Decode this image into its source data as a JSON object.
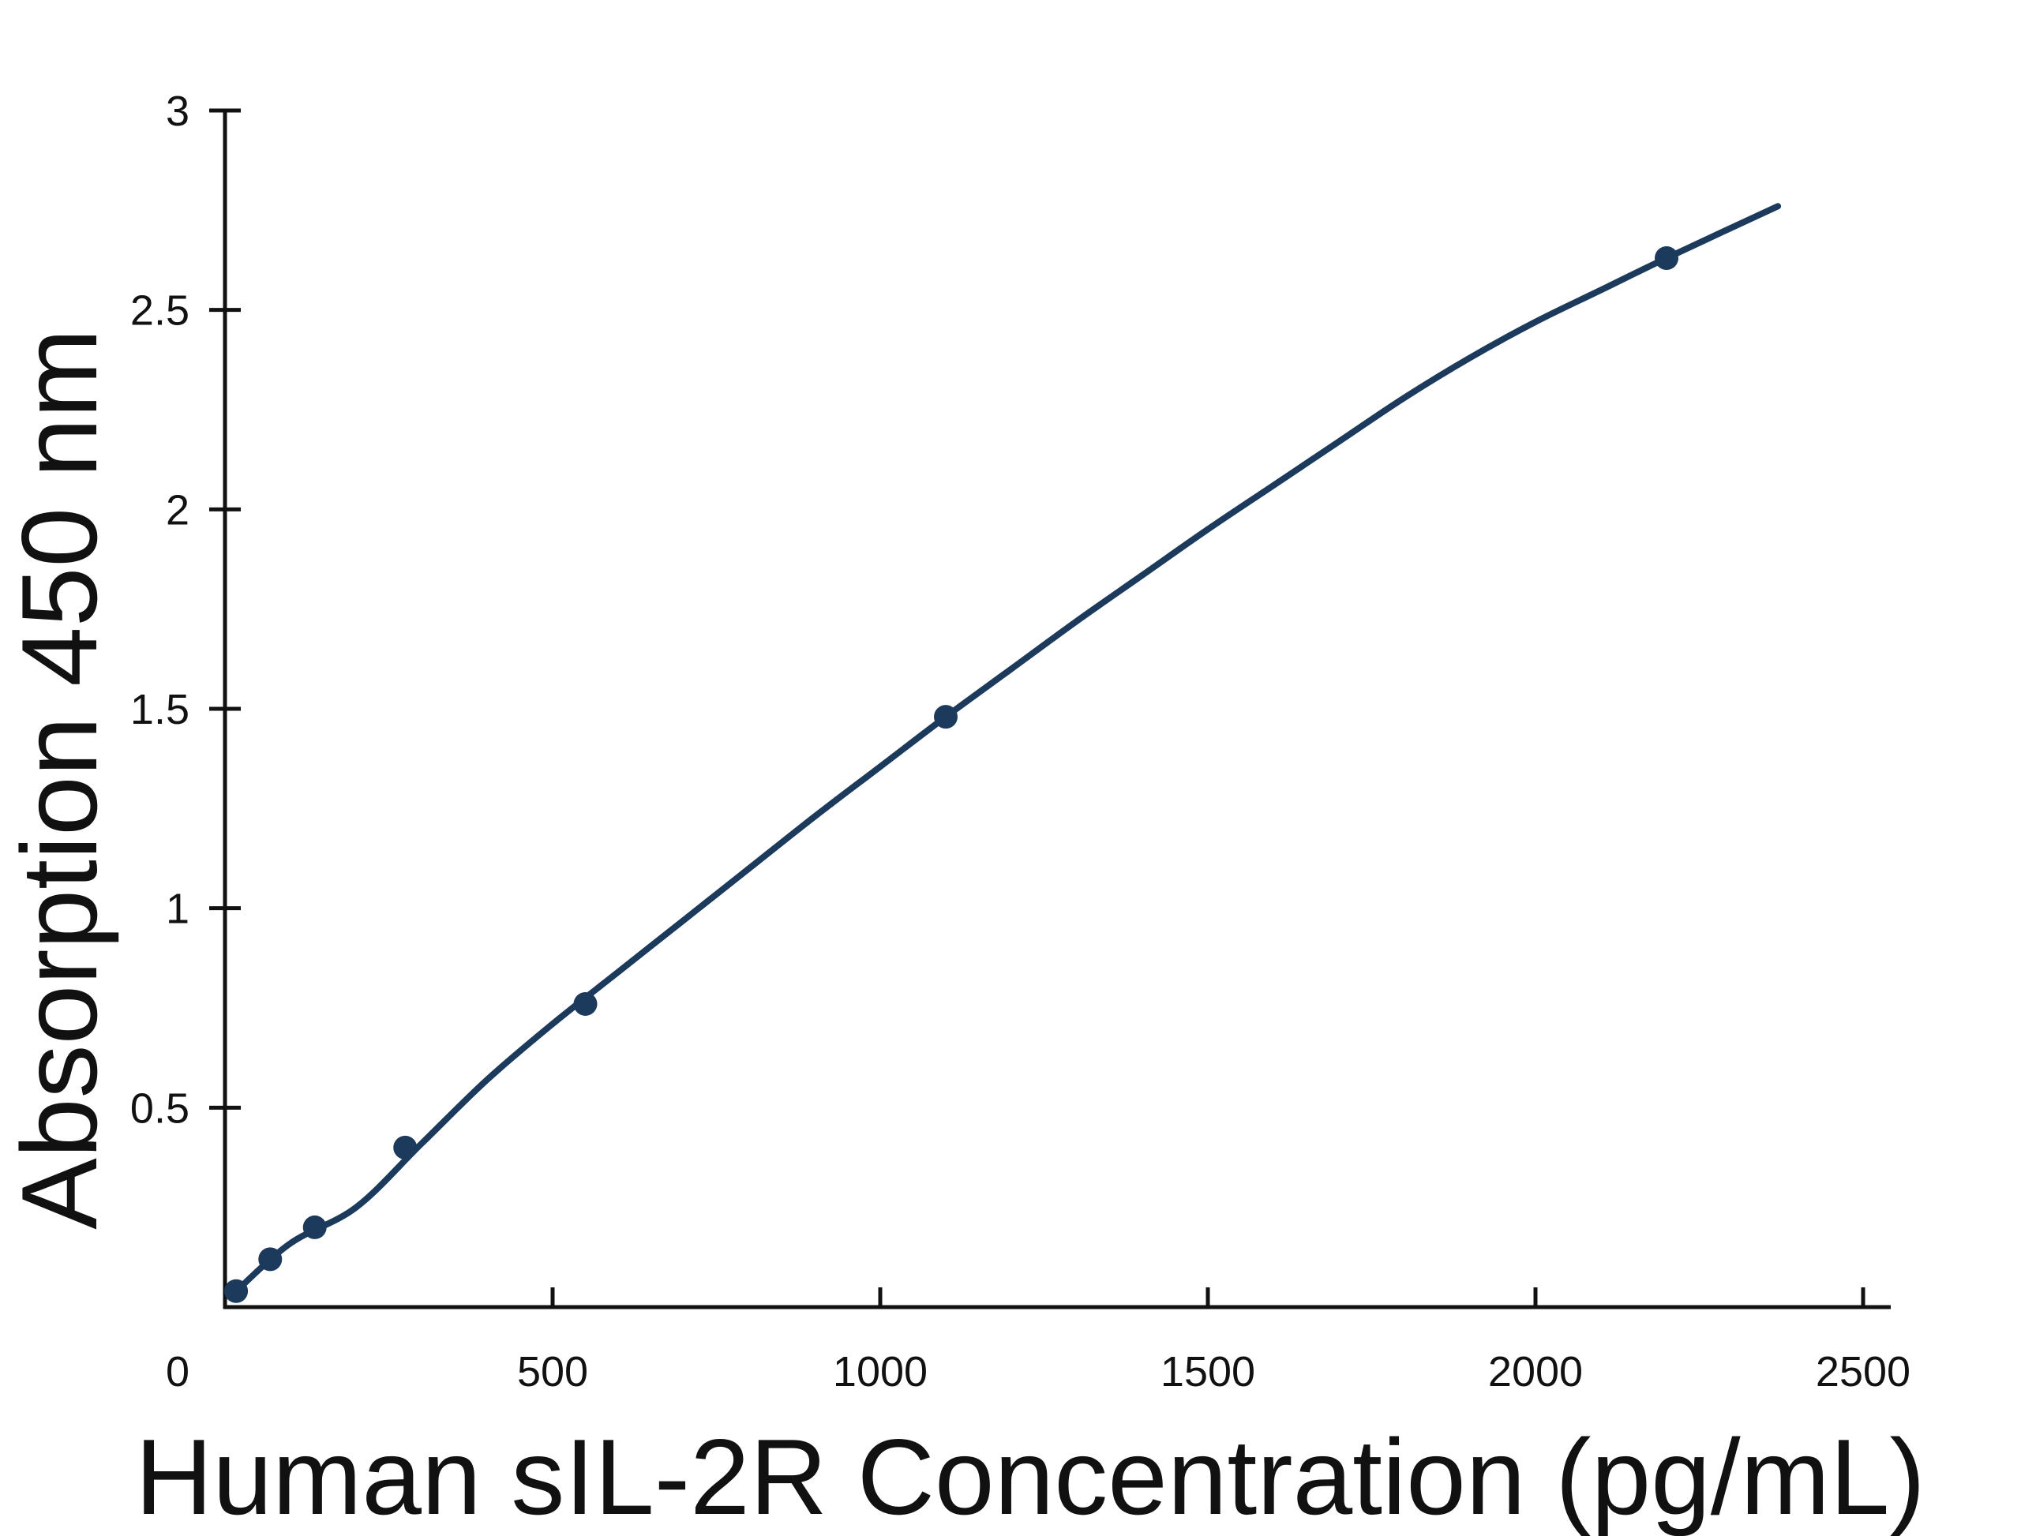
{
  "chart_data": {
    "type": "scatter",
    "title": "",
    "xlabel": "Human sIL-2R Concentration (pg/mL)",
    "ylabel": "Absorption 450 nm",
    "xlim": [
      0,
      2500
    ],
    "ylim": [
      0,
      3
    ],
    "x_ticks": [
      0,
      500,
      1000,
      1500,
      2000,
      2500
    ],
    "x_tick_labels": [
      "0",
      "500",
      "1000",
      "1500",
      "2000",
      "2500"
    ],
    "y_ticks": [
      0.5,
      1,
      1.5,
      2,
      2.5,
      3
    ],
    "y_tick_labels": [
      "0.5",
      "1",
      "1.5",
      "2",
      "2.5",
      "3"
    ],
    "grid": false,
    "series": [
      {
        "points": [
          {
            "x": 17,
            "y": 0.04
          },
          {
            "x": 69,
            "y": 0.12
          },
          {
            "x": 137,
            "y": 0.2
          },
          {
            "x": 275,
            "y": 0.4
          },
          {
            "x": 550,
            "y": 0.76
          },
          {
            "x": 1100,
            "y": 1.48
          },
          {
            "x": 2200,
            "y": 2.63
          }
        ],
        "curve": {
          "x": [
            17,
            100,
            200,
            300,
            400,
            500,
            600,
            700,
            800,
            900,
            1000,
            1100,
            1200,
            1300,
            1400,
            1500,
            1600,
            1700,
            1800,
            1900,
            2000,
            2100,
            2200,
            2370
          ],
          "y": [
            0.04,
            0.16,
            0.25,
            0.41,
            0.57,
            0.71,
            0.84,
            0.97,
            1.1,
            1.23,
            1.355,
            1.48,
            1.6,
            1.72,
            1.835,
            1.95,
            2.06,
            2.17,
            2.28,
            2.38,
            2.47,
            2.55,
            2.63,
            2.76
          ]
        },
        "color": "#1c3a5c"
      }
    ]
  }
}
